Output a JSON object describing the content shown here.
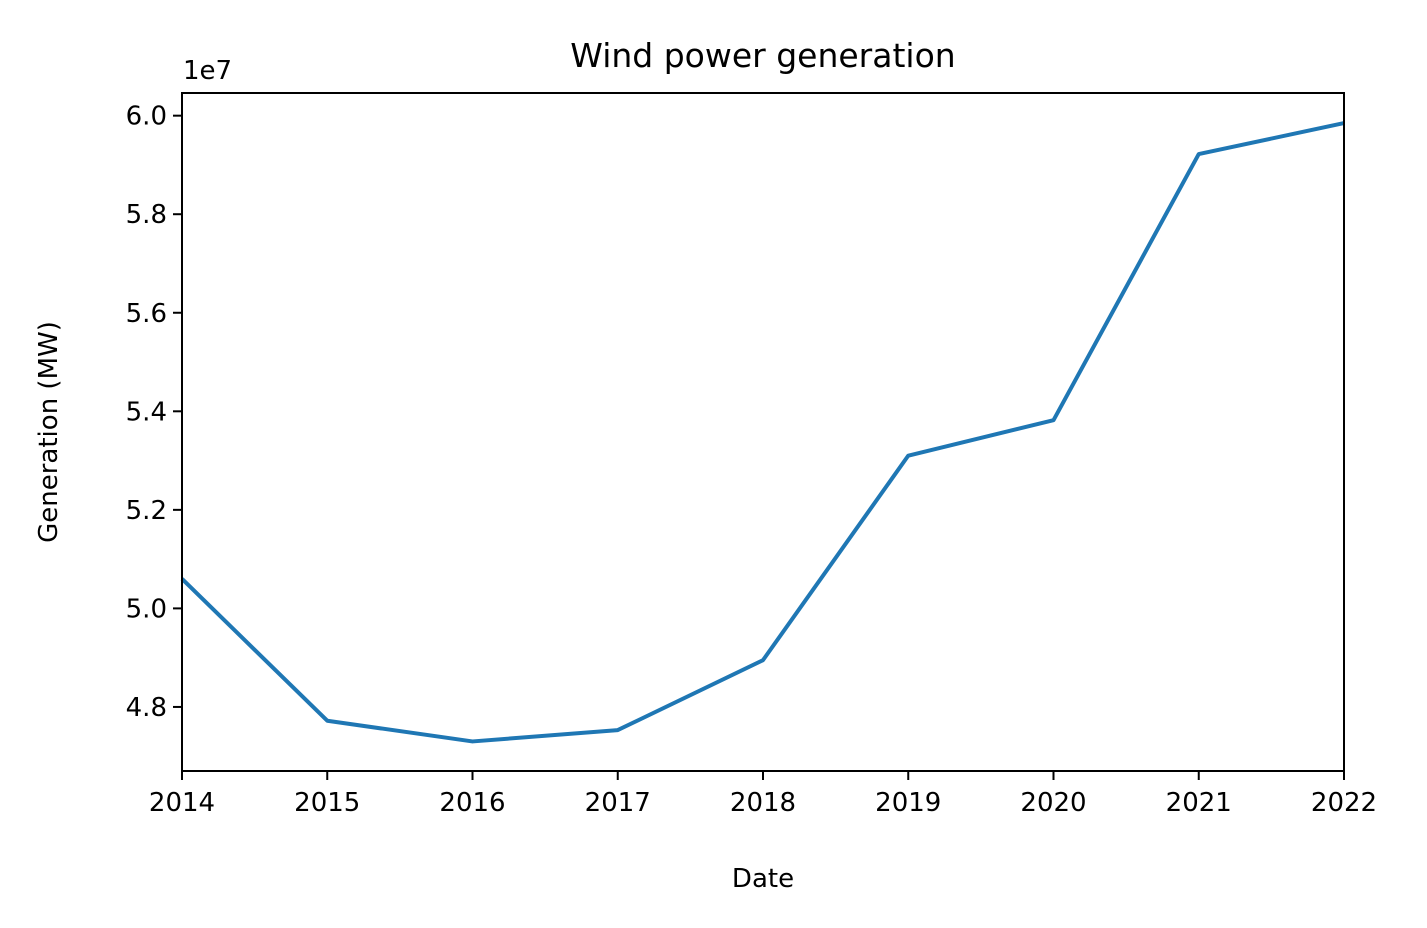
{
  "chart_data": {
    "type": "line",
    "title": "Wind power generation",
    "xlabel": "Date",
    "ylabel": "Generation (MW)",
    "offset_label": "1e7",
    "x_tick_labels": [
      "2014",
      "2015",
      "2016",
      "2017",
      "2018",
      "2019",
      "2020",
      "2021",
      "2022"
    ],
    "y_tick_labels": [
      "4.8",
      "5.0",
      "5.2",
      "5.4",
      "5.6",
      "5.8",
      "6.0"
    ],
    "y_ticks": [
      48000000,
      50000000,
      52000000,
      54000000,
      56000000,
      58000000,
      60000000
    ],
    "x": [
      2014,
      2015,
      2016,
      2017,
      2018,
      2019,
      2020,
      2021,
      2022
    ],
    "series": [
      {
        "color": "#1f77b4",
        "values": [
          50600000,
          47720000,
          47300000,
          47530000,
          48950000,
          53100000,
          53820000,
          59220000,
          59850000
        ]
      }
    ],
    "xlim": [
      2014,
      2022
    ],
    "ylim": [
      46700000,
      60460000
    ],
    "grid": false,
    "legend": "none"
  }
}
